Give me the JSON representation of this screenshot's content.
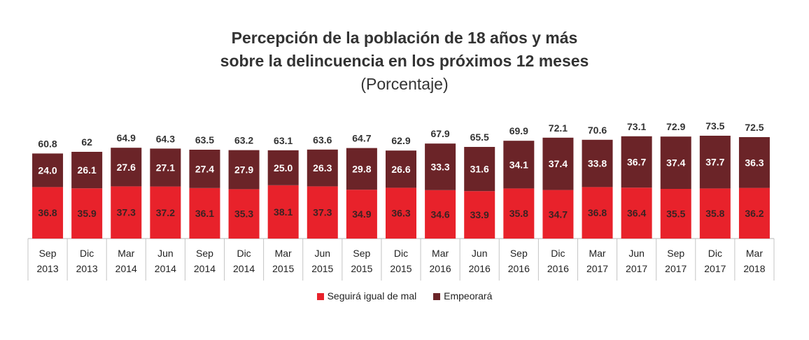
{
  "chart_data": {
    "type": "bar",
    "stacked": true,
    "title_line1": "Percepción de la población de 18 años y más",
    "title_line2": "sobre la delincuencia en los próximos 12 meses",
    "subtitle": "(Porcentaje)",
    "categories": [
      [
        "Sep",
        "2013"
      ],
      [
        "Dic",
        "2013"
      ],
      [
        "Mar",
        "2014"
      ],
      [
        "Jun",
        "2014"
      ],
      [
        "Sep",
        "2014"
      ],
      [
        "Dic",
        "2014"
      ],
      [
        "Mar",
        "2015"
      ],
      [
        "Jun",
        "2015"
      ],
      [
        "Sep",
        "2015"
      ],
      [
        "Dic",
        "2015"
      ],
      [
        "Mar",
        "2016"
      ],
      [
        "Jun",
        "2016"
      ],
      [
        "Sep",
        "2016"
      ],
      [
        "Dic",
        "2016"
      ],
      [
        "Mar",
        "2017"
      ],
      [
        "Jun",
        "2017"
      ],
      [
        "Sep",
        "2017"
      ],
      [
        "Dic",
        "2017"
      ],
      [
        "Mar",
        "2018"
      ]
    ],
    "series": [
      {
        "name": "Seguirá igual de mal",
        "color": "#e8222b",
        "values": [
          36.8,
          35.9,
          37.3,
          37.2,
          36.1,
          35.3,
          38.1,
          37.3,
          34.9,
          36.3,
          34.6,
          33.9,
          35.8,
          34.7,
          36.8,
          36.4,
          35.5,
          35.8,
          36.2
        ],
        "labels": [
          "36.8",
          "35.9",
          "37.3",
          "37.2",
          "36.1",
          "35.3",
          "38.1",
          "37.3",
          "34.9",
          "36.3",
          "34.6",
          "33.9",
          "35.8",
          "34.7",
          "36.8",
          "36.4",
          "35.5",
          "35.8",
          "36.2"
        ]
      },
      {
        "name": "Empeorará",
        "color": "#6b2428",
        "values": [
          24.0,
          26.1,
          27.6,
          27.1,
          27.4,
          27.9,
          25.0,
          26.3,
          29.8,
          26.6,
          33.3,
          31.6,
          34.1,
          37.4,
          33.8,
          36.7,
          37.4,
          37.7,
          36.3
        ],
        "labels": [
          "24.0",
          "26.1",
          "27.6",
          "27.1",
          "27.4",
          "27.9",
          "25.0",
          "26.3",
          "29.8",
          "26.6",
          "33.3",
          "31.6",
          "34.1",
          "37.4",
          "33.8",
          "36.7",
          "37.4",
          "37.7",
          "36.3"
        ]
      }
    ],
    "totals": [
      "60.8",
      "62",
      "64.9",
      "64.3",
      "63.5",
      "63.2",
      "63.1",
      "63.6",
      "64.7",
      "62.9",
      "67.9",
      "65.5",
      "69.9",
      "72.1",
      "70.6",
      "73.1",
      "72.9",
      "73.5",
      "72.5"
    ],
    "ylim": [
      0,
      100
    ],
    "legend_position": "bottom"
  }
}
